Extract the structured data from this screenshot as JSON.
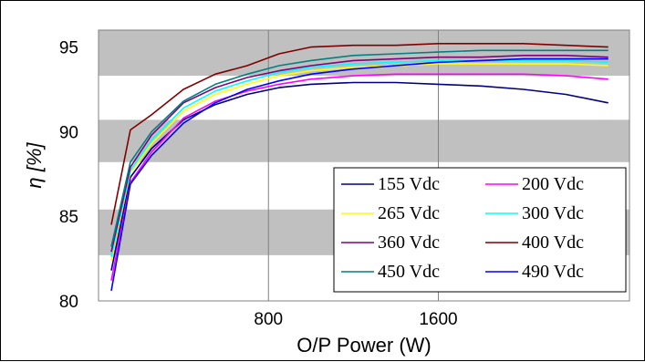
{
  "chart_data": {
    "type": "line",
    "title": "",
    "xlabel": "O/P Power (W)",
    "ylabel": "η [%]",
    "xlim": [
      0,
      2500
    ],
    "ylim": [
      80,
      96
    ],
    "xticks": [
      800,
      1600
    ],
    "yticks": [
      80,
      85,
      90,
      95
    ],
    "grid": true,
    "band_color": "#c0c0c0",
    "legend_position": "bottom-right",
    "x": [
      60,
      150,
      250,
      400,
      550,
      700,
      850,
      1000,
      1200,
      1400,
      1600,
      1800,
      2000,
      2200,
      2400
    ],
    "series": [
      {
        "name": "155 Vdc",
        "color": "#000080",
        "values": [
          81.8,
          87.3,
          89.0,
          90.7,
          91.6,
          92.2,
          92.6,
          92.8,
          92.9,
          92.9,
          92.8,
          92.7,
          92.5,
          92.2,
          91.7
        ]
      },
      {
        "name": "200 Vdc",
        "color": "#ff00ff",
        "values": [
          81.2,
          87.0,
          88.8,
          90.8,
          91.8,
          92.4,
          92.8,
          93.1,
          93.3,
          93.4,
          93.4,
          93.4,
          93.4,
          93.3,
          93.1
        ]
      },
      {
        "name": "265 Vdc",
        "color": "#ffff00",
        "values": [
          82.4,
          87.6,
          89.3,
          91.2,
          92.2,
          92.8,
          93.3,
          93.6,
          93.8,
          93.9,
          94.0,
          94.0,
          94.0,
          94.0,
          93.9
        ]
      },
      {
        "name": "300 Vdc",
        "color": "#00ffff",
        "values": [
          82.6,
          87.7,
          89.5,
          91.4,
          92.4,
          93.0,
          93.5,
          93.8,
          94.0,
          94.1,
          94.2,
          94.2,
          94.2,
          94.2,
          94.1
        ]
      },
      {
        "name": "360 Vdc",
        "color": "#800080",
        "values": [
          82.9,
          87.9,
          89.8,
          91.7,
          92.6,
          93.2,
          93.6,
          93.9,
          94.2,
          94.3,
          94.4,
          94.4,
          94.5,
          94.5,
          94.4
        ]
      },
      {
        "name": "400 Vdc",
        "color": "#800000",
        "values": [
          84.5,
          90.1,
          91.0,
          92.5,
          93.4,
          93.9,
          94.6,
          95.0,
          95.1,
          95.1,
          95.2,
          95.2,
          95.2,
          95.1,
          95.0
        ]
      },
      {
        "name": "450 Vdc",
        "color": "#008080",
        "values": [
          83.2,
          88.2,
          90.0,
          91.8,
          92.8,
          93.4,
          93.9,
          94.2,
          94.5,
          94.6,
          94.7,
          94.8,
          94.8,
          94.8,
          94.8
        ]
      },
      {
        "name": "490 Vdc",
        "color": "#0000ff",
        "values": [
          80.6,
          86.9,
          88.6,
          90.5,
          91.7,
          92.5,
          93.0,
          93.4,
          93.7,
          93.9,
          94.1,
          94.2,
          94.3,
          94.3,
          94.3
        ]
      }
    ]
  }
}
